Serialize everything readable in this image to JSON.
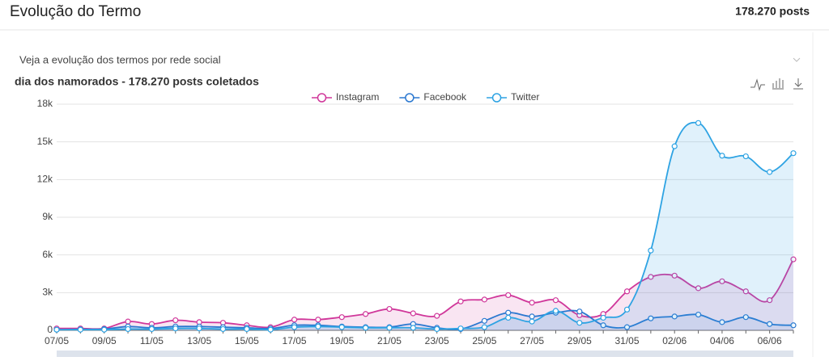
{
  "header": {
    "title": "Evolução do Termo",
    "total": "178.270 posts"
  },
  "panel": {
    "subtitle": "Veja a evolução dos termos por rede social"
  },
  "chart_data": {
    "type": "line",
    "title": "dia dos namorados - 178.270 posts coletados",
    "categories": [
      "07/05",
      null,
      "09/05",
      null,
      "11/05",
      null,
      "13/05",
      null,
      "15/05",
      null,
      "17/05",
      null,
      "19/05",
      null,
      "21/05",
      null,
      "23/05",
      null,
      "25/05",
      null,
      "27/05",
      null,
      "29/05",
      null,
      "31/05",
      null,
      "02/06",
      null,
      "04/06",
      null,
      "06/06",
      null
    ],
    "series": [
      {
        "name": "Instagram",
        "color": "#d0379a",
        "values": [
          150,
          150,
          150,
          700,
          500,
          800,
          650,
          600,
          400,
          250,
          850,
          850,
          1050,
          1300,
          1700,
          1350,
          1150,
          2300,
          2450,
          2800,
          2200,
          2400,
          1200,
          1300,
          3100,
          4250,
          4350,
          3350,
          3900,
          3100,
          2400,
          5650
        ]
      },
      {
        "name": "Facebook",
        "color": "#2b78d0",
        "values": [
          50,
          80,
          100,
          300,
          200,
          300,
          300,
          250,
          200,
          150,
          400,
          400,
          300,
          250,
          250,
          500,
          200,
          100,
          750,
          1400,
          1100,
          1400,
          1500,
          400,
          250,
          950,
          1100,
          1250,
          650,
          1050,
          500,
          400
        ]
      },
      {
        "name": "Twitter",
        "color": "#2ea3e3",
        "values": [
          50,
          50,
          50,
          100,
          100,
          150,
          150,
          100,
          100,
          50,
          250,
          300,
          250,
          200,
          200,
          200,
          100,
          150,
          250,
          1000,
          700,
          1550,
          600,
          1000,
          1650,
          6350,
          14650,
          16500,
          13900,
          13850,
          12600,
          14100
        ]
      }
    ],
    "ylim": [
      0,
      18000
    ],
    "yticks": [
      0,
      {
        "value": 3000,
        "label": "3k"
      },
      {
        "value": 6000,
        "label": "6k"
      },
      {
        "value": 9000,
        "label": "9k"
      },
      {
        "value": 12000,
        "label": "12k"
      },
      {
        "value": 15000,
        "label": "15k"
      },
      {
        "value": 18000,
        "label": "18k"
      }
    ],
    "grid": true,
    "legend": "top"
  }
}
